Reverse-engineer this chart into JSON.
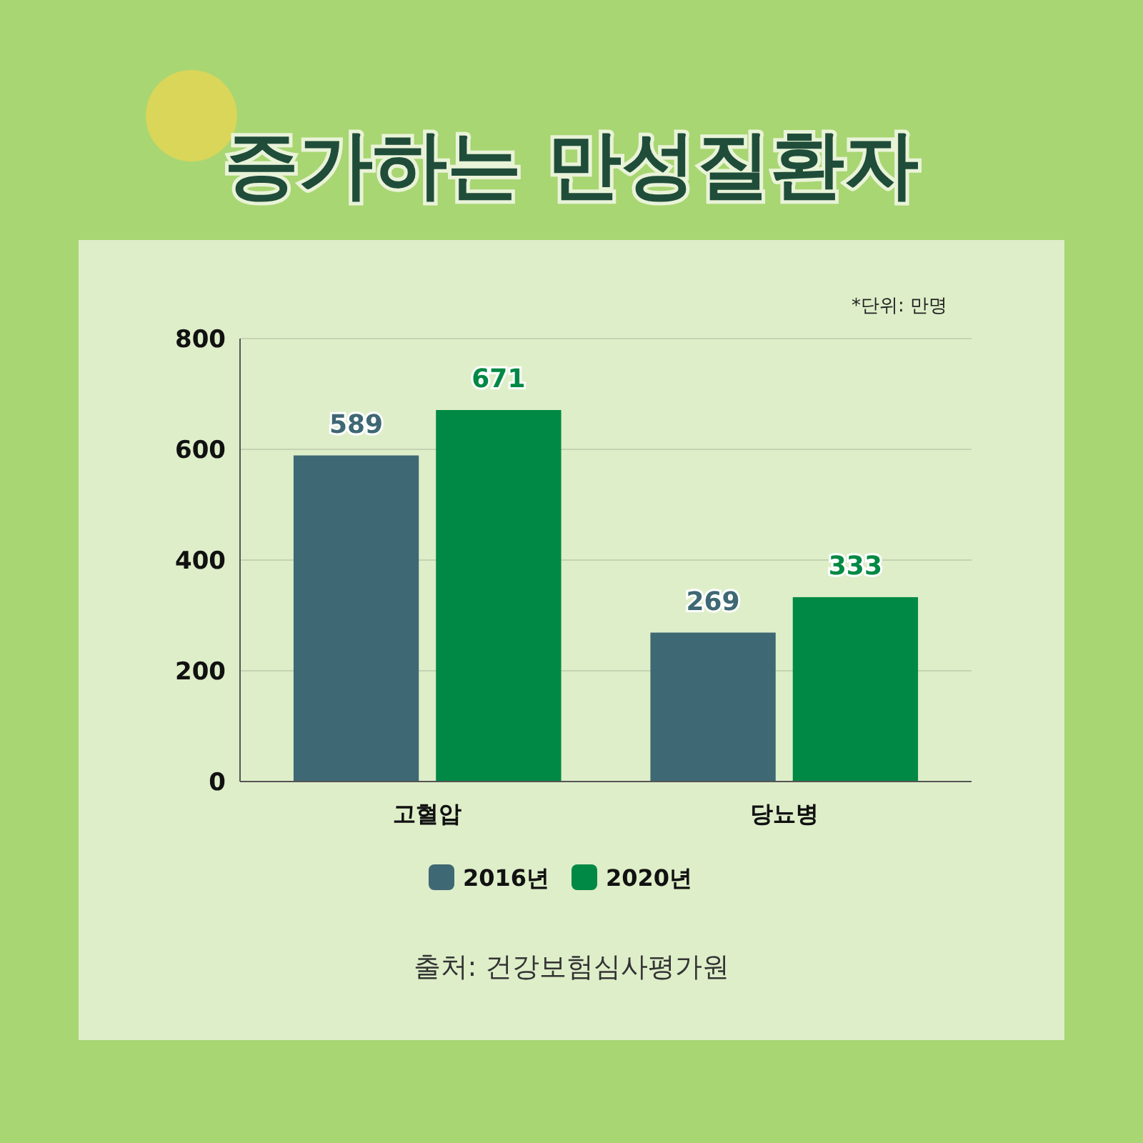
{
  "chart_data": {
    "type": "bar",
    "title": "증가하는 만성질환자",
    "categories": [
      "고혈압",
      "당뇨병"
    ],
    "series": [
      {
        "name": "2016년",
        "color": "#3e6873",
        "values": [
          589,
          269
        ]
      },
      {
        "name": "2020년",
        "color": "#008944",
        "values": [
          671,
          333
        ]
      }
    ],
    "ylim": [
      0,
      800
    ],
    "yticks": [
      0,
      200,
      400,
      600,
      800
    ],
    "grid": "y",
    "legend": "bottom",
    "data_labels": true,
    "annotations": [
      "*단위: 만명",
      "출처: 건강보험심사평가원"
    ]
  }
}
